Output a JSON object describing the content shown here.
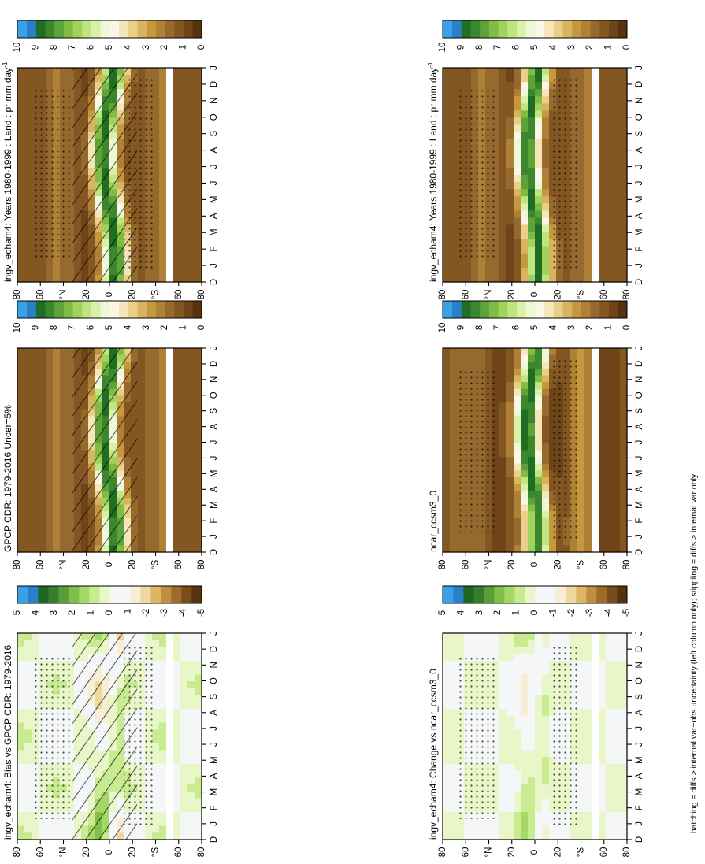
{
  "figure": {
    "footnote": "hatching = diffs > internal var+obs uncertainty (left column only); stippling = diffs > internal var only",
    "orientation": "rotated 90 degrees clockwise (text reads bottom-to-top)"
  },
  "chart_data": [
    {
      "type": "heatmap",
      "panel": "left-top",
      "title": "ingv_echam4: Years 1980-1999 : Land : pr mm day",
      "title_superscript": "-1",
      "xlabel": "",
      "ylabel": "",
      "x_ticks": [
        "D",
        "J",
        "F",
        "M",
        "A",
        "M",
        "J",
        "J",
        "A",
        "S",
        "O",
        "N",
        "D",
        "J"
      ],
      "y_ticks": [
        "80",
        "60",
        "°N",
        "20",
        "0",
        "20",
        "°S",
        "60",
        "80"
      ],
      "colorbar": {
        "labels": [
          "0",
          "1",
          "2",
          "3",
          "4",
          "5",
          "6",
          "7",
          "8",
          "9",
          "10"
        ],
        "range": [
          0,
          10
        ]
      },
      "overlays": [
        "hatching",
        "stippling"
      ]
    },
    {
      "type": "heatmap",
      "panel": "right-top",
      "title": "ingv_echam4: Years 1980-1999 : Land : pr mm day",
      "title_superscript": "-1",
      "xlabel": "",
      "ylabel": "",
      "x_ticks": [
        "D",
        "J",
        "F",
        "M",
        "A",
        "M",
        "J",
        "J",
        "A",
        "S",
        "O",
        "N",
        "D",
        "J"
      ],
      "y_ticks": [
        "80",
        "60",
        "°N",
        "20",
        "0",
        "20",
        "°S",
        "60",
        "80"
      ],
      "colorbar": {
        "labels": [
          "0",
          "1",
          "2",
          "3",
          "4",
          "5",
          "6",
          "7",
          "8",
          "9",
          "10"
        ],
        "range": [
          0,
          10
        ]
      },
      "overlays": [
        "stippling"
      ]
    },
    {
      "type": "heatmap",
      "panel": "left-middle",
      "title": "GPCP CDR: 1979-2016 Uncer=5%",
      "title_superscript": "",
      "xlabel": "",
      "ylabel": "",
      "x_ticks": [
        "D",
        "J",
        "F",
        "M",
        "A",
        "M",
        "J",
        "J",
        "A",
        "S",
        "O",
        "N",
        "D",
        "J"
      ],
      "y_ticks": [
        "80",
        "60",
        "°N",
        "20",
        "0",
        "20",
        "°S",
        "60",
        "80"
      ],
      "colorbar": {
        "labels": [
          "0",
          "1",
          "2",
          "3",
          "4",
          "5",
          "6",
          "7",
          "8",
          "9",
          "10"
        ],
        "range": [
          0,
          10
        ]
      },
      "overlays": [
        "hatching"
      ]
    },
    {
      "type": "heatmap",
      "panel": "right-middle",
      "title": "ncar_ccsm3_0",
      "title_superscript": "",
      "xlabel": "",
      "ylabel": "",
      "x_ticks": [
        "D",
        "J",
        "F",
        "M",
        "A",
        "M",
        "J",
        "J",
        "A",
        "S",
        "O",
        "N",
        "D",
        "J"
      ],
      "y_ticks": [
        "80",
        "60",
        "°N",
        "20",
        "0",
        "20",
        "°S",
        "60",
        "80"
      ],
      "colorbar": {
        "labels": [
          "0",
          "1",
          "2",
          "3",
          "4",
          "5",
          "6",
          "7",
          "8",
          "9",
          "10"
        ],
        "range": [
          0,
          10
        ]
      },
      "overlays": [
        "stippling"
      ]
    },
    {
      "type": "heatmap",
      "panel": "left-bottom",
      "title": "ingv_echam4: Bias vs GPCP CDR: 1979-2016",
      "title_superscript": "",
      "xlabel": "",
      "ylabel": "",
      "x_ticks": [
        "D",
        "J",
        "F",
        "M",
        "A",
        "M",
        "J",
        "J",
        "A",
        "S",
        "O",
        "N",
        "D",
        "J"
      ],
      "y_ticks": [
        "80",
        "60",
        "°N",
        "20",
        "0",
        "20",
        "°S",
        "60",
        "80"
      ],
      "colorbar": {
        "labels": [
          "-5",
          "-4",
          "-3",
          "-2",
          "-1",
          "0",
          "1",
          "2",
          "3",
          "4",
          "5"
        ],
        "range": [
          -5,
          5
        ]
      },
      "overlays": [
        "hatching",
        "stippling"
      ]
    },
    {
      "type": "heatmap",
      "panel": "right-bottom",
      "title": "ingv_echam4: Change vs ncar_ccsm3_0",
      "title_superscript": "",
      "xlabel": "",
      "ylabel": "",
      "x_ticks": [
        "D",
        "J",
        "F",
        "M",
        "A",
        "M",
        "J",
        "J",
        "A",
        "S",
        "O",
        "N",
        "D",
        "J"
      ],
      "y_ticks": [
        "80",
        "60",
        "°N",
        "20",
        "0",
        "20",
        "°S",
        "60",
        "80"
      ],
      "colorbar": {
        "labels": [
          "-5",
          "-4",
          "-3",
          "-2",
          "-1",
          "0",
          "1",
          "2",
          "3",
          "4",
          "5"
        ],
        "range": [
          -5,
          5
        ]
      },
      "overlays": [
        "stippling"
      ]
    }
  ],
  "colors": {
    "abs_scale": [
      "#563210",
      "#6e4418",
      "#845622",
      "#966a2e",
      "#b08036",
      "#c6983e",
      "#d8b460",
      "#e8d08a",
      "#f4e6b8",
      "#fbf6e6",
      "#eef8d8",
      "#d8f0a8",
      "#bfe480",
      "#a0d25c",
      "#80bc44",
      "#5ea23a",
      "#3c862e",
      "#206e24",
      "#2a80c8",
      "#3aa0e8"
    ],
    "anom_scale": [
      "#563210",
      "#7a4c1c",
      "#a06a2a",
      "#c28e3c",
      "#dcb664",
      "#eed8a0",
      "#f8eed4",
      "#f4f6f8",
      "#f4f6f8",
      "#e8f6c8",
      "#c8ea90",
      "#a6d868",
      "#80c04a",
      "#5a9e3a",
      "#357e2c",
      "#1e6622",
      "#2a80c8",
      "#3aa0e8"
    ]
  }
}
